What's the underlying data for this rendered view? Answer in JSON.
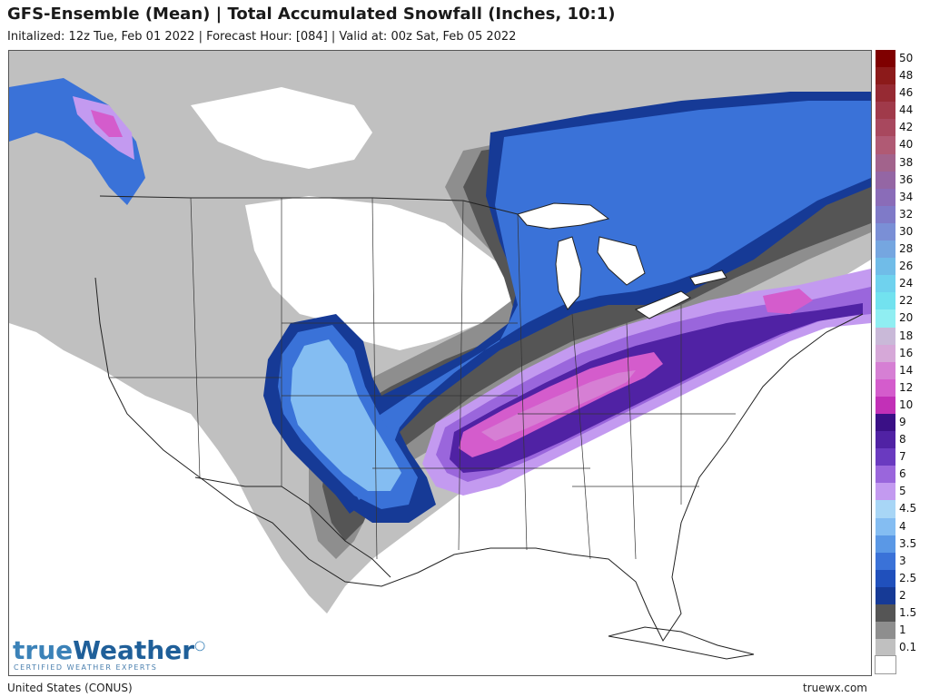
{
  "header": {
    "title": "GFS-Ensemble (Mean) | Total Accumulated Snowfall (Inches, 10:1)",
    "subtitle": "Initalized: 12z Tue, Feb 01 2022 | Forecast Hour: [084] | Valid at: 00z Sat, Feb 05 2022"
  },
  "legend": {
    "items": [
      {
        "label": "50",
        "color": "#7f0000"
      },
      {
        "label": "48",
        "color": "#8c1a1a"
      },
      {
        "label": "46",
        "color": "#962a33"
      },
      {
        "label": "44",
        "color": "#a03a4a"
      },
      {
        "label": "42",
        "color": "#a8485e"
      },
      {
        "label": "40",
        "color": "#b05a74"
      },
      {
        "label": "38",
        "color": "#a2638c"
      },
      {
        "label": "36",
        "color": "#9466a4"
      },
      {
        "label": "34",
        "color": "#8a6cb8"
      },
      {
        "label": "32",
        "color": "#7f7ac8"
      },
      {
        "label": "30",
        "color": "#7a8fd6"
      },
      {
        "label": "28",
        "color": "#75a6e0"
      },
      {
        "label": "26",
        "color": "#70bce8"
      },
      {
        "label": "24",
        "color": "#6fd2ee"
      },
      {
        "label": "22",
        "color": "#72e2ef"
      },
      {
        "label": "20",
        "color": "#90eef2"
      },
      {
        "label": "18",
        "color": "#c9b9d8"
      },
      {
        "label": "16",
        "color": "#d6a8d8"
      },
      {
        "label": "14",
        "color": "#d67fd4"
      },
      {
        "label": "12",
        "color": "#d45ccc"
      },
      {
        "label": "10",
        "color": "#c230b7"
      },
      {
        "label": "9",
        "color": "#3a1086"
      },
      {
        "label": "8",
        "color": "#5022a4"
      },
      {
        "label": "7",
        "color": "#6a3ac0"
      },
      {
        "label": "6",
        "color": "#9a66dc"
      },
      {
        "label": "5",
        "color": "#c39af0"
      },
      {
        "label": "4.5",
        "color": "#a8d6f6"
      },
      {
        "label": "4",
        "color": "#84bdf2"
      },
      {
        "label": "3.5",
        "color": "#5a98e6"
      },
      {
        "label": "3",
        "color": "#3a72d8"
      },
      {
        "label": "2.5",
        "color": "#2050bc"
      },
      {
        "label": "2",
        "color": "#163a96"
      },
      {
        "label": "1.5",
        "color": "#555555"
      },
      {
        "label": "1",
        "color": "#8e8e8e"
      },
      {
        "label": "0.1",
        "color": "#c0c0c0"
      },
      {
        "label": "",
        "color": "#ffffff"
      }
    ]
  },
  "logo": {
    "part1": "true",
    "part2": "Weather",
    "tagline": "CERTIFIED WEATHER EXPERTS"
  },
  "footer": {
    "region": "United States (CONUS)",
    "site": "truewx.com"
  },
  "colors": {
    "water": "#ffffff",
    "snow_light": "#c0c0c0",
    "snow_1": "#8e8e8e",
    "snow_1_5": "#555555",
    "snow_2": "#163a96",
    "snow_3": "#3a72d8",
    "snow_4": "#84bdf2",
    "snow_5": "#c39af0",
    "snow_6": "#9a66dc",
    "snow_8": "#5022a4",
    "snow_9": "#3a1086",
    "snow_12": "#d45ccc",
    "snow_14": "#d67fd4",
    "boundary": "#222222"
  }
}
